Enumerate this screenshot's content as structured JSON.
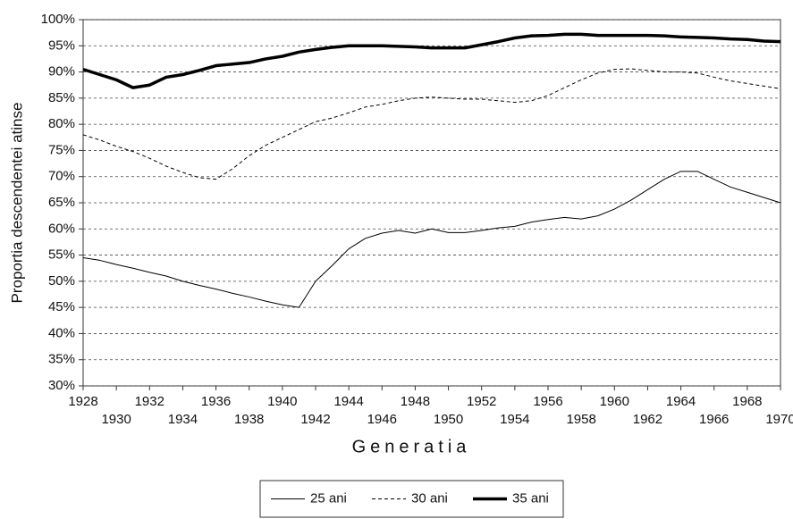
{
  "chart_data": {
    "type": "line",
    "x_label": "Generatia",
    "y_label": "Proportia descendentei atinse",
    "x": [
      1928,
      1929,
      1930,
      1931,
      1932,
      1933,
      1934,
      1935,
      1936,
      1937,
      1938,
      1939,
      1940,
      1941,
      1942,
      1943,
      1944,
      1945,
      1946,
      1947,
      1948,
      1949,
      1950,
      1951,
      1952,
      1953,
      1954,
      1955,
      1956,
      1957,
      1958,
      1959,
      1960,
      1961,
      1962,
      1963,
      1964,
      1965,
      1966,
      1967,
      1968,
      1969,
      1970
    ],
    "series": [
      {
        "name": "25 ani",
        "color": "#000000",
        "width": 1,
        "dash": false,
        "values": [
          54.5,
          54,
          53.2,
          52.5,
          51.7,
          51,
          50,
          49.2,
          48.5,
          47.7,
          47,
          46.2,
          45.5,
          45,
          50,
          53,
          56.2,
          58.2,
          59.2,
          59.7,
          59.2,
          60,
          59.3,
          59.3,
          59.7,
          60.2,
          60.5,
          61.3,
          61.8,
          62.2,
          61.9,
          62.5,
          63.8,
          65.5,
          67.5,
          69.5,
          71,
          71,
          69.5,
          68,
          67,
          66,
          65
        ]
      },
      {
        "name": "30 ani",
        "color": "#000000",
        "width": 1,
        "dash": true,
        "values": [
          78,
          77,
          75.8,
          74.8,
          73.5,
          72,
          70.8,
          69.8,
          69.5,
          71.5,
          74,
          76,
          77.5,
          79,
          80.5,
          81.2,
          82.2,
          83.3,
          83.8,
          84.5,
          85,
          85.2,
          85,
          84.8,
          84.8,
          84.5,
          84.2,
          84.5,
          85.5,
          87,
          88.5,
          89.8,
          90.5,
          90.6,
          90.3,
          90,
          90,
          89.8,
          89,
          88.3,
          87.8,
          87.3,
          86.8
        ]
      },
      {
        "name": "35 ani",
        "color": "#000000",
        "width": 3.5,
        "dash": false,
        "values": [
          90.5,
          89.5,
          88.5,
          87,
          87.5,
          89,
          89.5,
          90.3,
          91.2,
          91.5,
          91.8,
          92.5,
          93,
          93.8,
          94.3,
          94.7,
          95,
          95,
          95,
          94.9,
          94.8,
          94.6,
          94.6,
          94.6,
          95.2,
          95.8,
          96.5,
          96.9,
          97,
          97.2,
          97.2,
          97,
          97,
          97,
          97,
          96.9,
          96.7,
          96.6,
          96.5,
          96.3,
          96.2,
          95.9,
          95.8
        ]
      }
    ],
    "xlim": [
      1928,
      1970
    ],
    "xticks": [
      1928,
      1930,
      1932,
      1934,
      1936,
      1938,
      1940,
      1942,
      1944,
      1946,
      1948,
      1950,
      1952,
      1954,
      1956,
      1958,
      1960,
      1962,
      1964,
      1966,
      1968,
      1970
    ],
    "ylim": [
      30,
      100
    ],
    "yticks": [
      {
        "value": 30,
        "label": "30%"
      },
      {
        "value": 35,
        "label": "35%"
      },
      {
        "value": 40,
        "label": "40%"
      },
      {
        "value": 45,
        "label": "45%"
      },
      {
        "value": 50,
        "label": "50%"
      },
      {
        "value": 55,
        "label": "55%"
      },
      {
        "value": 60,
        "label": "60%"
      },
      {
        "value": 65,
        "label": "65%"
      },
      {
        "value": 70,
        "label": "70%"
      },
      {
        "value": 75,
        "label": "75%"
      },
      {
        "value": 80,
        "label": "80%"
      },
      {
        "value": 85,
        "label": "85%"
      },
      {
        "value": 90,
        "label": "90%"
      },
      {
        "value": 95,
        "label": "95%"
      },
      {
        "value": 100,
        "label": "100%"
      }
    ],
    "grid": true,
    "legend": "bottom"
  }
}
